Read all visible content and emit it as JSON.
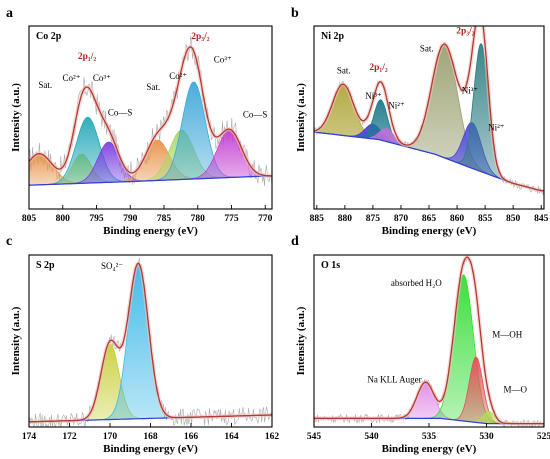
{
  "colors": {
    "envelope": "#b03a2e",
    "background": "#2b3fd9",
    "raw": "#9a9a9a",
    "label_red": "#b22222"
  },
  "chart_data": [
    {
      "id": "a",
      "panel_label": "a",
      "title": "Co 2p",
      "type": "line",
      "xlabel": "Binding energy (eV)",
      "ylabel": "Intensity (a.u.)",
      "xlim": [
        805,
        769
      ],
      "xticks": [
        805,
        800,
        795,
        790,
        785,
        780,
        775,
        770
      ],
      "ylim": [
        0,
        1
      ],
      "background": [
        [
          805,
          0.13
        ],
        [
          790,
          0.15
        ],
        [
          770,
          0.18
        ]
      ],
      "peaks": [
        {
          "center": 803.5,
          "height": 0.17,
          "width": 2.0,
          "color": "#e8944a"
        },
        {
          "center": 797.2,
          "height": 0.16,
          "width": 1.4,
          "color": "#c9d34a"
        },
        {
          "center": 796.3,
          "height": 0.36,
          "width": 1.7,
          "color": "#27a9b8"
        },
        {
          "center": 793.2,
          "height": 0.22,
          "width": 1.6,
          "color": "#7b3fe0"
        },
        {
          "center": 786.0,
          "height": 0.22,
          "width": 1.8,
          "color": "#e8944a"
        },
        {
          "center": 782.4,
          "height": 0.27,
          "width": 1.8,
          "color": "#a8d86b"
        },
        {
          "center": 780.6,
          "height": 0.53,
          "width": 1.7,
          "color": "#3fa8d9"
        },
        {
          "center": 775.3,
          "height": 0.26,
          "width": 1.8,
          "color": "#c43fd0"
        }
      ],
      "annotations": [
        {
          "text": "Sat.",
          "x": 802.6,
          "y": 0.66,
          "style": "ann"
        },
        {
          "text": "Co²⁺",
          "x": 798.7,
          "y": 0.7,
          "style": "ann"
        },
        {
          "text": "2p₁/₂",
          "x": 796.4,
          "y": 0.82,
          "style": "ann-red"
        },
        {
          "text": "Co³⁺",
          "x": 794.2,
          "y": 0.7,
          "style": "ann"
        },
        {
          "text": "Co—S",
          "x": 791.5,
          "y": 0.51,
          "style": "ann"
        },
        {
          "text": "Sat.",
          "x": 786.6,
          "y": 0.65,
          "style": "ann"
        },
        {
          "text": "Co²⁺",
          "x": 782.9,
          "y": 0.71,
          "style": "ann"
        },
        {
          "text": "2p₃/₂",
          "x": 779.6,
          "y": 0.93,
          "style": "ann-red"
        },
        {
          "text": "Co³⁺",
          "x": 776.3,
          "y": 0.8,
          "style": "ann"
        },
        {
          "text": "Co—S",
          "x": 771.5,
          "y": 0.5,
          "style": "ann"
        }
      ]
    },
    {
      "id": "b",
      "panel_label": "b",
      "title": "Ni 2p",
      "type": "line",
      "xlabel": "Binding energy (eV)",
      "ylabel": "Intensity (a.u.)",
      "xlim": [
        885.5,
        844.5
      ],
      "xticks": [
        885,
        880,
        875,
        870,
        865,
        860,
        855,
        850,
        845
      ],
      "ylim": [
        0,
        1
      ],
      "background": [
        [
          885.5,
          0.42
        ],
        [
          874,
          0.38
        ],
        [
          864,
          0.3
        ],
        [
          858,
          0.23
        ],
        [
          850,
          0.14
        ],
        [
          845,
          0.1
        ]
      ],
      "peaks": [
        {
          "center": 880.3,
          "height": 0.28,
          "width": 1.9,
          "color": "#b0a63a"
        },
        {
          "center": 875.0,
          "height": 0.08,
          "width": 1.4,
          "color": "#4a3ae0"
        },
        {
          "center": 873.6,
          "height": 0.22,
          "width": 1.2,
          "color": "#1e7a8c"
        },
        {
          "center": 872.5,
          "height": 0.07,
          "width": 1.3,
          "color": "#c070d8"
        },
        {
          "center": 862.2,
          "height": 0.62,
          "width": 2.3,
          "color": "#9aa070"
        },
        {
          "center": 857.3,
          "height": 0.25,
          "width": 1.6,
          "color": "#4a46e0"
        },
        {
          "center": 855.7,
          "height": 0.7,
          "width": 1.3,
          "color": "#2f7f83"
        }
      ],
      "annotations": [
        {
          "text": "Sat.",
          "x": 880.2,
          "y": 0.74,
          "style": "ann"
        },
        {
          "text": "2p₁/₂",
          "x": 874.0,
          "y": 0.76,
          "style": "ann-red"
        },
        {
          "text": "Ni³⁺",
          "x": 874.9,
          "y": 0.6,
          "style": "ann"
        },
        {
          "text": "Ni²⁺",
          "x": 870.8,
          "y": 0.55,
          "style": "ann"
        },
        {
          "text": "Sat.",
          "x": 865.4,
          "y": 0.86,
          "style": "ann"
        },
        {
          "text": "2p₃/₂",
          "x": 858.5,
          "y": 0.96,
          "style": "ann-red"
        },
        {
          "text": "Ni³⁺",
          "x": 857.7,
          "y": 0.63,
          "style": "ann"
        },
        {
          "text": "Ni²⁺",
          "x": 853.0,
          "y": 0.43,
          "style": "ann"
        }
      ]
    },
    {
      "id": "c",
      "panel_label": "c",
      "title": "S 2p",
      "type": "line",
      "xlabel": "Binding energy (eV)",
      "ylabel": "Intensity (a.u.)",
      "xlim": [
        174,
        162
      ],
      "xticks": [
        174,
        172,
        170,
        168,
        166,
        164,
        162
      ],
      "ylim": [
        0,
        1
      ],
      "background": [
        [
          174,
          0.03
        ],
        [
          162,
          0.07
        ]
      ],
      "peaks": [
        {
          "center": 170.0,
          "height": 0.44,
          "width": 0.45,
          "color": "#c9cf3a"
        },
        {
          "center": 168.6,
          "height": 0.9,
          "width": 0.5,
          "color": "#3ab8e8"
        }
      ],
      "annotations": [
        {
          "text": "SO₄²⁻",
          "x": 169.9,
          "y": 0.92,
          "style": "ann"
        }
      ]
    },
    {
      "id": "d",
      "panel_label": "d",
      "title": "O 1s",
      "type": "line",
      "xlabel": "Binding energy (eV)",
      "ylabel": "Intensity (a.u.)",
      "xlim": [
        545,
        525
      ],
      "xticks": [
        545,
        540,
        535,
        530,
        525
      ],
      "ylim": [
        0,
        1
      ],
      "background": [
        [
          545,
          0.05
        ],
        [
          534,
          0.05
        ],
        [
          530,
          0.02
        ],
        [
          525,
          0.02
        ]
      ],
      "peaks": [
        {
          "center": 535.3,
          "height": 0.21,
          "width": 0.75,
          "color": "#e08ae8"
        },
        {
          "center": 532.0,
          "height": 0.85,
          "width": 0.85,
          "color": "#33dd33"
        },
        {
          "center": 530.9,
          "height": 0.38,
          "width": 0.6,
          "color": "#e8505a"
        },
        {
          "center": 529.8,
          "height": 0.07,
          "width": 0.5,
          "color": "#b0e050"
        }
      ],
      "annotations": [
        {
          "text": "absorbed H₂O",
          "x": 536.1,
          "y": 0.82,
          "style": "ann"
        },
        {
          "text": "M—OH",
          "x": 528.2,
          "y": 0.52,
          "style": "ann"
        },
        {
          "text": "Na KLL Auger",
          "x": 538.0,
          "y": 0.26,
          "style": "ann"
        },
        {
          "text": "M—O",
          "x": 527.5,
          "y": 0.2,
          "style": "ann"
        }
      ]
    }
  ]
}
